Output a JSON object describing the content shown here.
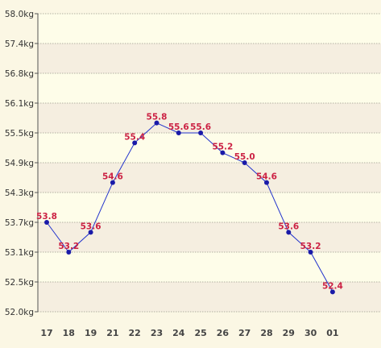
{
  "chart_data": {
    "type": "line",
    "categories": [
      "17",
      "18",
      "19",
      "21",
      "22",
      "23",
      "24",
      "25",
      "26",
      "27",
      "28",
      "29",
      "30",
      "01"
    ],
    "values": [
      53.8,
      53.2,
      53.6,
      54.6,
      55.4,
      55.8,
      55.6,
      55.6,
      55.2,
      55.0,
      54.6,
      53.6,
      53.2,
      52.4
    ],
    "value_labels": [
      "53.8",
      "53.2",
      "53.6",
      "54.6",
      "55.4",
      "55.8",
      "55.6",
      "55.6",
      "55.2",
      "55.0",
      "54.6",
      "53.6",
      "53.2",
      "52.4"
    ],
    "y_ticks": [
      "52.0kg",
      "52.5kg",
      "53.1kg",
      "53.7kg",
      "54.3kg",
      "54.9kg",
      "55.5kg",
      "56.1kg",
      "56.8kg",
      "57.4kg",
      "58.0kg"
    ],
    "ylim": [
      52.0,
      58.0
    ],
    "grid": true,
    "colors": {
      "line": "#2233cc",
      "marker": "#1a1aa8",
      "label": "#cc2244",
      "band_light": "#fefde9",
      "band_dark": "#f5eee0",
      "background": "#fbf7e4"
    }
  }
}
